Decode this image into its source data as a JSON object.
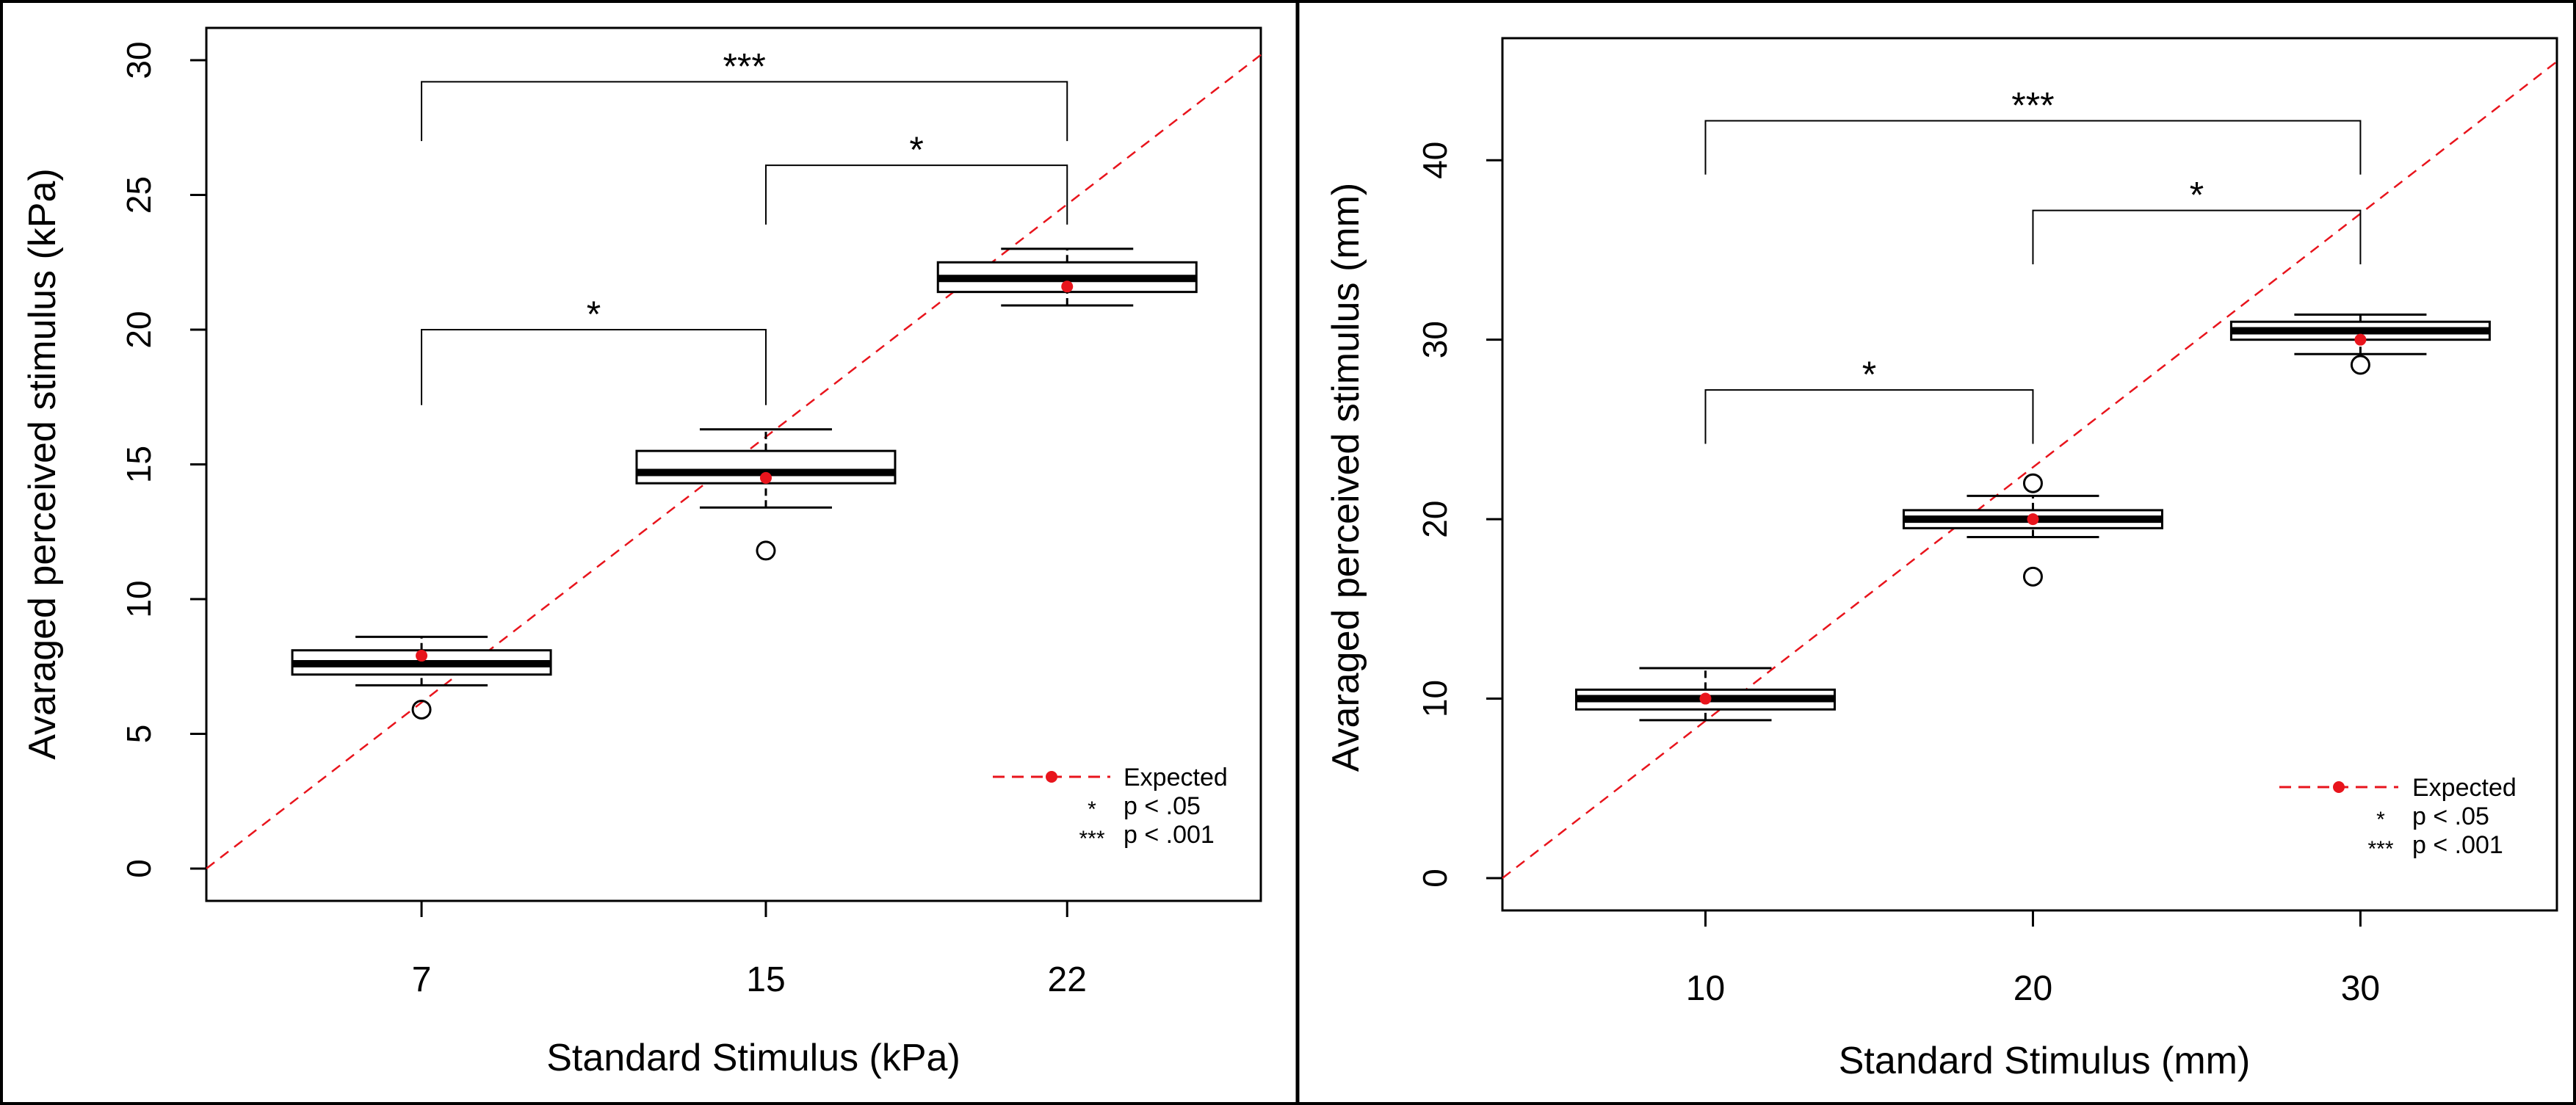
{
  "legend_labels": {
    "expected": "Expected",
    "p05": "p < .05",
    "p001": "p < .001",
    "p05_symbol": "*",
    "p001_symbol": "***"
  },
  "colors": {
    "expected": "#e8141c",
    "box": "#000000",
    "background": "#ffffff"
  },
  "chart_data": [
    {
      "type": "box",
      "xlabel": "Standard Stimulus (kPa)",
      "ylabel": "Avaraged perceived stimulus (kPa)",
      "categories": [
        "7",
        "15",
        "22"
      ],
      "x_values": [
        7,
        15,
        22
      ],
      "xlim": [
        2.0,
        26.5
      ],
      "ylim": [
        -1.2,
        31.2
      ],
      "yticks": [
        0,
        5,
        10,
        15,
        20,
        25,
        30
      ],
      "boxes": [
        {
          "whisker_low": 6.8,
          "q1": 7.2,
          "median": 7.6,
          "q3": 8.1,
          "whisker_high": 8.6,
          "outliers": [
            5.9
          ],
          "mean": 7.9
        },
        {
          "whisker_low": 13.4,
          "q1": 14.3,
          "median": 14.7,
          "q3": 15.5,
          "whisker_high": 16.3,
          "outliers": [
            11.8
          ],
          "mean": 14.5
        },
        {
          "whisker_low": 20.9,
          "q1": 21.4,
          "median": 21.9,
          "q3": 22.5,
          "whisker_high": 23.0,
          "outliers": [],
          "mean": 21.6
        }
      ],
      "expected_line": {
        "x": [
          2.0,
          26.5
        ],
        "y": [
          0.0,
          30.2
        ]
      },
      "significance": [
        {
          "from": 0,
          "to": 1,
          "label": "*",
          "level": 20.0,
          "left_drop": 17.2,
          "right_drop": 17.2
        },
        {
          "from": 1,
          "to": 2,
          "label": "*",
          "level": 26.1,
          "left_drop": 23.9,
          "right_drop": 23.9
        },
        {
          "from": 0,
          "to": 2,
          "label": "***",
          "level": 29.2,
          "left_drop": 27.0,
          "right_drop": 27.0
        }
      ],
      "legend_position": "bottom-right"
    },
    {
      "type": "box",
      "xlabel": "Standard Stimulus (mm)",
      "ylabel": "Avaraged perceived stimulus (mm)",
      "categories": [
        "10",
        "20",
        "30"
      ],
      "x_values": [
        10,
        20,
        30
      ],
      "xlim": [
        3.8,
        36.0
      ],
      "ylim": [
        -1.8,
        46.8
      ],
      "yticks": [
        0,
        10,
        20,
        30,
        40
      ],
      "boxes": [
        {
          "whisker_low": 8.8,
          "q1": 9.4,
          "median": 10.0,
          "q3": 10.5,
          "whisker_high": 11.7,
          "outliers": [],
          "mean": 10.0
        },
        {
          "whisker_low": 19.0,
          "q1": 19.5,
          "median": 20.0,
          "q3": 20.5,
          "whisker_high": 21.3,
          "outliers": [
            16.8,
            22.0
          ],
          "mean": 20.0
        },
        {
          "whisker_low": 29.2,
          "q1": 30.0,
          "median": 30.5,
          "q3": 31.0,
          "whisker_high": 31.4,
          "outliers": [
            28.6
          ],
          "mean": 30.0
        }
      ],
      "expected_line": {
        "x": [
          3.8,
          36.0
        ],
        "y": [
          0.0,
          45.5
        ]
      },
      "significance": [
        {
          "from": 0,
          "to": 1,
          "label": "*",
          "level": 27.2,
          "left_drop": 24.2,
          "right_drop": 24.2
        },
        {
          "from": 1,
          "to": 2,
          "label": "*",
          "level": 37.2,
          "left_drop": 34.2,
          "right_drop": 34.2
        },
        {
          "from": 0,
          "to": 2,
          "label": "***",
          "level": 42.2,
          "left_drop": 39.2,
          "right_drop": 39.2
        }
      ],
      "legend_position": "bottom-right"
    }
  ]
}
